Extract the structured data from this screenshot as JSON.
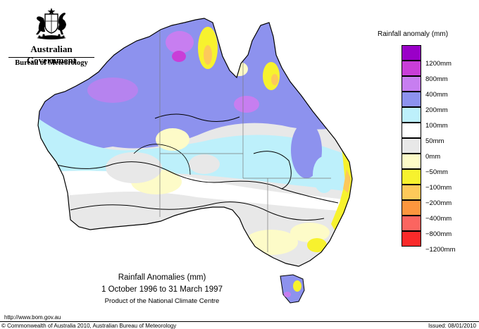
{
  "header": {
    "government": "Australian Government",
    "bureau": "Bureau of Meteorology"
  },
  "legend": {
    "title": "Rainfall anomaly (mm)",
    "entries": [
      {
        "label": "1200mm",
        "color": "#9a00c8"
      },
      {
        "label": "800mm",
        "color": "#c93ed8"
      },
      {
        "label": "400mm",
        "color": "#c77ef0"
      },
      {
        "label": "200mm",
        "color": "#8d92ee"
      },
      {
        "label": "100mm",
        "color": "#bdf0fb"
      },
      {
        "label": "50mm",
        "color": "#ffffff"
      },
      {
        "label": "0mm",
        "color": "#e8e8e8"
      },
      {
        "label": "−50mm",
        "color": "#fdfbc8"
      },
      {
        "label": "−100mm",
        "color": "#f7f22e"
      },
      {
        "label": "−200mm",
        "color": "#fdc95a"
      },
      {
        "label": "−400mm",
        "color": "#fc963e"
      },
      {
        "label": "−800mm",
        "color": "#fb6560"
      },
      {
        "label": "−1200mm",
        "color": "#fa2a2a"
      }
    ]
  },
  "map": {
    "title": "Rainfall Anomalies (mm)",
    "period": "1 October 1996 to 31 March 1997",
    "credit": "Product of the National Climate Centre"
  },
  "footer": {
    "url": "http://www.bom.gov.au",
    "copyright": "© Commonwealth of Australia 2010, Australian Bureau of Meteorology",
    "issued": "Issued: 08/01/2010"
  }
}
